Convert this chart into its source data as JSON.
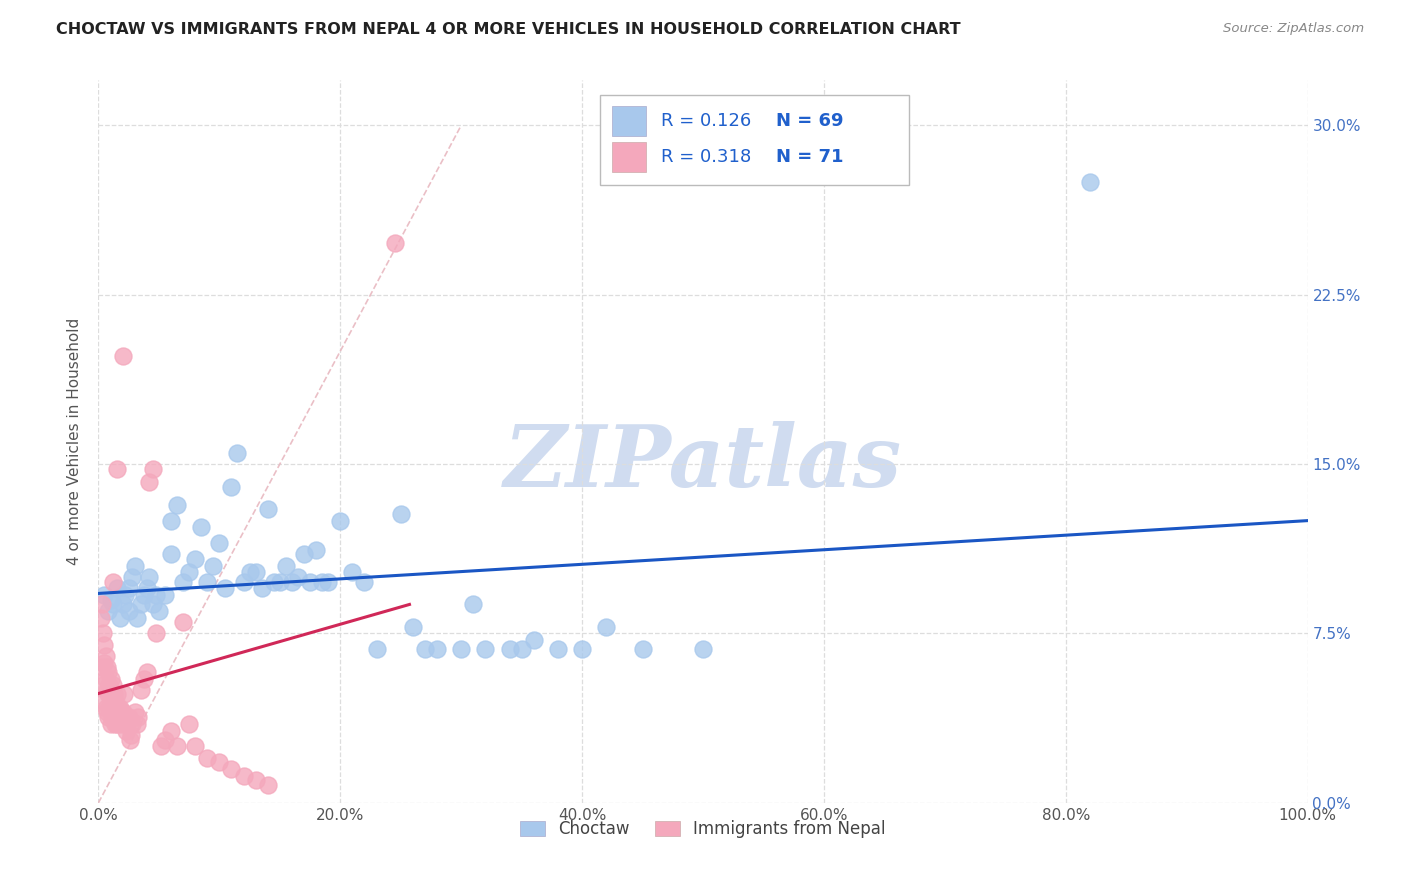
{
  "title": "CHOCTAW VS IMMIGRANTS FROM NEPAL 4 OR MORE VEHICLES IN HOUSEHOLD CORRELATION CHART",
  "source": "Source: ZipAtlas.com",
  "ylabel_label": "4 or more Vehicles in Household",
  "xlim": [
    0.0,
    1.0
  ],
  "ylim": [
    0.0,
    0.32
  ],
  "xtick_vals": [
    0.0,
    0.2,
    0.4,
    0.6,
    0.8,
    1.0
  ],
  "xtick_labels": [
    "0.0%",
    "20.0%",
    "40.0%",
    "60.0%",
    "80.0%",
    "100.0%"
  ],
  "ytick_vals": [
    0.0,
    0.075,
    0.15,
    0.225,
    0.3
  ],
  "ytick_labels": [
    "0.0%",
    "7.5%",
    "15.0%",
    "22.5%",
    "30.0%"
  ],
  "R_blue": 0.126,
  "N_blue": 69,
  "R_pink": 0.318,
  "N_pink": 71,
  "color_blue": "#A8C8EC",
  "color_pink": "#F4A8BC",
  "line_blue": "#1A56C4",
  "line_pink": "#D02858",
  "line_diag_color": "#E8B8C0",
  "watermark_text": "ZIPatlas",
  "watermark_color": "#D0DCF0",
  "legend_text_color": "#2060CC",
  "title_color": "#222222",
  "source_color": "#888888",
  "axis_label_color": "#555555",
  "right_tick_color": "#4472C4",
  "grid_color": "#DDDDDD",
  "blue_x": [
    0.005,
    0.008,
    0.01,
    0.012,
    0.015,
    0.018,
    0.02,
    0.022,
    0.025,
    0.025,
    0.028,
    0.03,
    0.032,
    0.035,
    0.038,
    0.04,
    0.042,
    0.045,
    0.048,
    0.05,
    0.055,
    0.06,
    0.06,
    0.065,
    0.07,
    0.075,
    0.08,
    0.085,
    0.09,
    0.095,
    0.1,
    0.105,
    0.11,
    0.115,
    0.12,
    0.125,
    0.13,
    0.135,
    0.14,
    0.145,
    0.15,
    0.155,
    0.16,
    0.165,
    0.17,
    0.175,
    0.18,
    0.185,
    0.19,
    0.2,
    0.21,
    0.22,
    0.23,
    0.25,
    0.26,
    0.27,
    0.28,
    0.3,
    0.31,
    0.32,
    0.34,
    0.35,
    0.36,
    0.38,
    0.4,
    0.42,
    0.45,
    0.5,
    0.82
  ],
  "blue_y": [
    0.092,
    0.085,
    0.09,
    0.088,
    0.095,
    0.082,
    0.088,
    0.092,
    0.095,
    0.085,
    0.1,
    0.105,
    0.082,
    0.088,
    0.092,
    0.095,
    0.1,
    0.088,
    0.092,
    0.085,
    0.092,
    0.11,
    0.125,
    0.132,
    0.098,
    0.102,
    0.108,
    0.122,
    0.098,
    0.105,
    0.115,
    0.095,
    0.14,
    0.155,
    0.098,
    0.102,
    0.102,
    0.095,
    0.13,
    0.098,
    0.098,
    0.105,
    0.098,
    0.1,
    0.11,
    0.098,
    0.112,
    0.098,
    0.098,
    0.125,
    0.102,
    0.098,
    0.068,
    0.128,
    0.078,
    0.068,
    0.068,
    0.068,
    0.088,
    0.068,
    0.068,
    0.068,
    0.072,
    0.068,
    0.068,
    0.078,
    0.068,
    0.068,
    0.275
  ],
  "pink_x": [
    0.002,
    0.003,
    0.003,
    0.004,
    0.004,
    0.005,
    0.005,
    0.005,
    0.006,
    0.006,
    0.006,
    0.007,
    0.007,
    0.007,
    0.008,
    0.008,
    0.008,
    0.009,
    0.009,
    0.01,
    0.01,
    0.01,
    0.011,
    0.011,
    0.012,
    0.012,
    0.013,
    0.013,
    0.014,
    0.014,
    0.015,
    0.015,
    0.016,
    0.017,
    0.018,
    0.019,
    0.02,
    0.021,
    0.022,
    0.023,
    0.024,
    0.025,
    0.026,
    0.027,
    0.028,
    0.03,
    0.032,
    0.033,
    0.035,
    0.038,
    0.04,
    0.042,
    0.045,
    0.048,
    0.052,
    0.055,
    0.06,
    0.065,
    0.07,
    0.075,
    0.08,
    0.09,
    0.1,
    0.11,
    0.12,
    0.13,
    0.14,
    0.012,
    0.015,
    0.02,
    0.245
  ],
  "pink_y": [
    0.082,
    0.088,
    0.06,
    0.075,
    0.052,
    0.07,
    0.062,
    0.045,
    0.065,
    0.055,
    0.042,
    0.06,
    0.05,
    0.04,
    0.058,
    0.048,
    0.038,
    0.052,
    0.042,
    0.055,
    0.045,
    0.035,
    0.048,
    0.038,
    0.052,
    0.042,
    0.048,
    0.038,
    0.045,
    0.035,
    0.048,
    0.035,
    0.042,
    0.038,
    0.042,
    0.035,
    0.04,
    0.048,
    0.038,
    0.032,
    0.035,
    0.038,
    0.028,
    0.03,
    0.035,
    0.04,
    0.035,
    0.038,
    0.05,
    0.055,
    0.058,
    0.142,
    0.148,
    0.075,
    0.025,
    0.028,
    0.032,
    0.025,
    0.08,
    0.035,
    0.025,
    0.02,
    0.018,
    0.015,
    0.012,
    0.01,
    0.008,
    0.098,
    0.148,
    0.198,
    0.248
  ]
}
